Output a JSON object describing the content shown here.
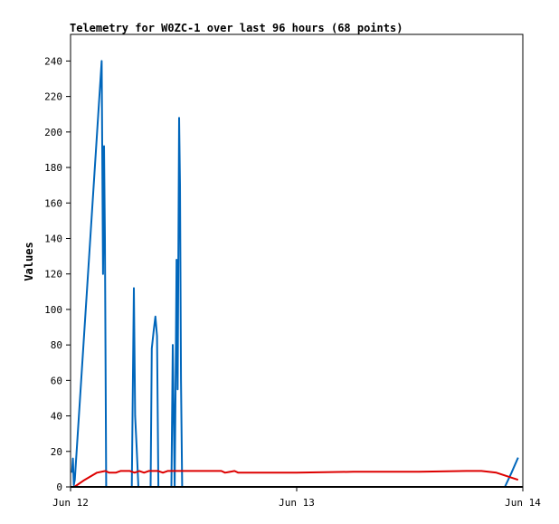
{
  "chart_data": {
    "type": "line",
    "title": "Telemetry for W0ZC-1 over last 96 hours (68 points)",
    "xlabel": "",
    "ylabel": "Values",
    "ylim": [
      0,
      255
    ],
    "xlim": [
      0,
      48
    ],
    "x_unit": "hours since Jun 12 00:00",
    "yticks": [
      0,
      20,
      40,
      60,
      80,
      100,
      120,
      140,
      160,
      180,
      200,
      220,
      240
    ],
    "xticks": [
      {
        "x": 0,
        "label": "Jun 12"
      },
      {
        "x": 24,
        "label": "Jun 13"
      },
      {
        "x": 48,
        "label": "Jun 14"
      }
    ],
    "grid": false,
    "legend": "none",
    "series": [
      {
        "color": "#0066bb",
        "points": [
          [
            0.15,
            8
          ],
          [
            0.25,
            16
          ],
          [
            0.35,
            1
          ],
          [
            0.45,
            4
          ],
          [
            3.3,
            240
          ],
          [
            3.45,
            120
          ],
          [
            3.55,
            192
          ],
          [
            3.65,
            140
          ],
          [
            3.78,
            0
          ],
          [
            6.5,
            0
          ],
          [
            6.72,
            112
          ],
          [
            6.85,
            40
          ],
          [
            7.02,
            22
          ],
          [
            7.2,
            0
          ],
          [
            8.5,
            0
          ],
          [
            8.62,
            78
          ],
          [
            8.82,
            88
          ],
          [
            9.0,
            96
          ],
          [
            9.18,
            85
          ],
          [
            9.32,
            0
          ],
          [
            10.7,
            0
          ],
          [
            10.85,
            80
          ],
          [
            10.95,
            40
          ],
          [
            11.05,
            0
          ],
          [
            11.15,
            55
          ],
          [
            11.25,
            128
          ],
          [
            11.37,
            55
          ],
          [
            11.52,
            208
          ],
          [
            11.62,
            170
          ],
          [
            11.72,
            60
          ],
          [
            11.85,
            0
          ],
          [
            11.95,
            0
          ],
          [
            46.1,
            0
          ],
          [
            46.8,
            8
          ],
          [
            47.5,
            16.5
          ]
        ]
      },
      {
        "color": "#dd0000",
        "points": [
          [
            0.4,
            0
          ],
          [
            1.5,
            4
          ],
          [
            2.8,
            8
          ],
          [
            3.7,
            9
          ],
          [
            4.1,
            8
          ],
          [
            4.8,
            8
          ],
          [
            5.3,
            9
          ],
          [
            6.3,
            9
          ],
          [
            6.8,
            8
          ],
          [
            7.3,
            9
          ],
          [
            7.8,
            8
          ],
          [
            8.3,
            9
          ],
          [
            9.3,
            9
          ],
          [
            9.8,
            8
          ],
          [
            10.3,
            9
          ],
          [
            13,
            9
          ],
          [
            16,
            9
          ],
          [
            16.4,
            8
          ],
          [
            17.4,
            9
          ],
          [
            17.8,
            8
          ],
          [
            24,
            8
          ],
          [
            30,
            8.5
          ],
          [
            37,
            8.5
          ],
          [
            42,
            9
          ],
          [
            43.6,
            9
          ],
          [
            45.2,
            8
          ],
          [
            47.5,
            4
          ]
        ]
      }
    ]
  }
}
